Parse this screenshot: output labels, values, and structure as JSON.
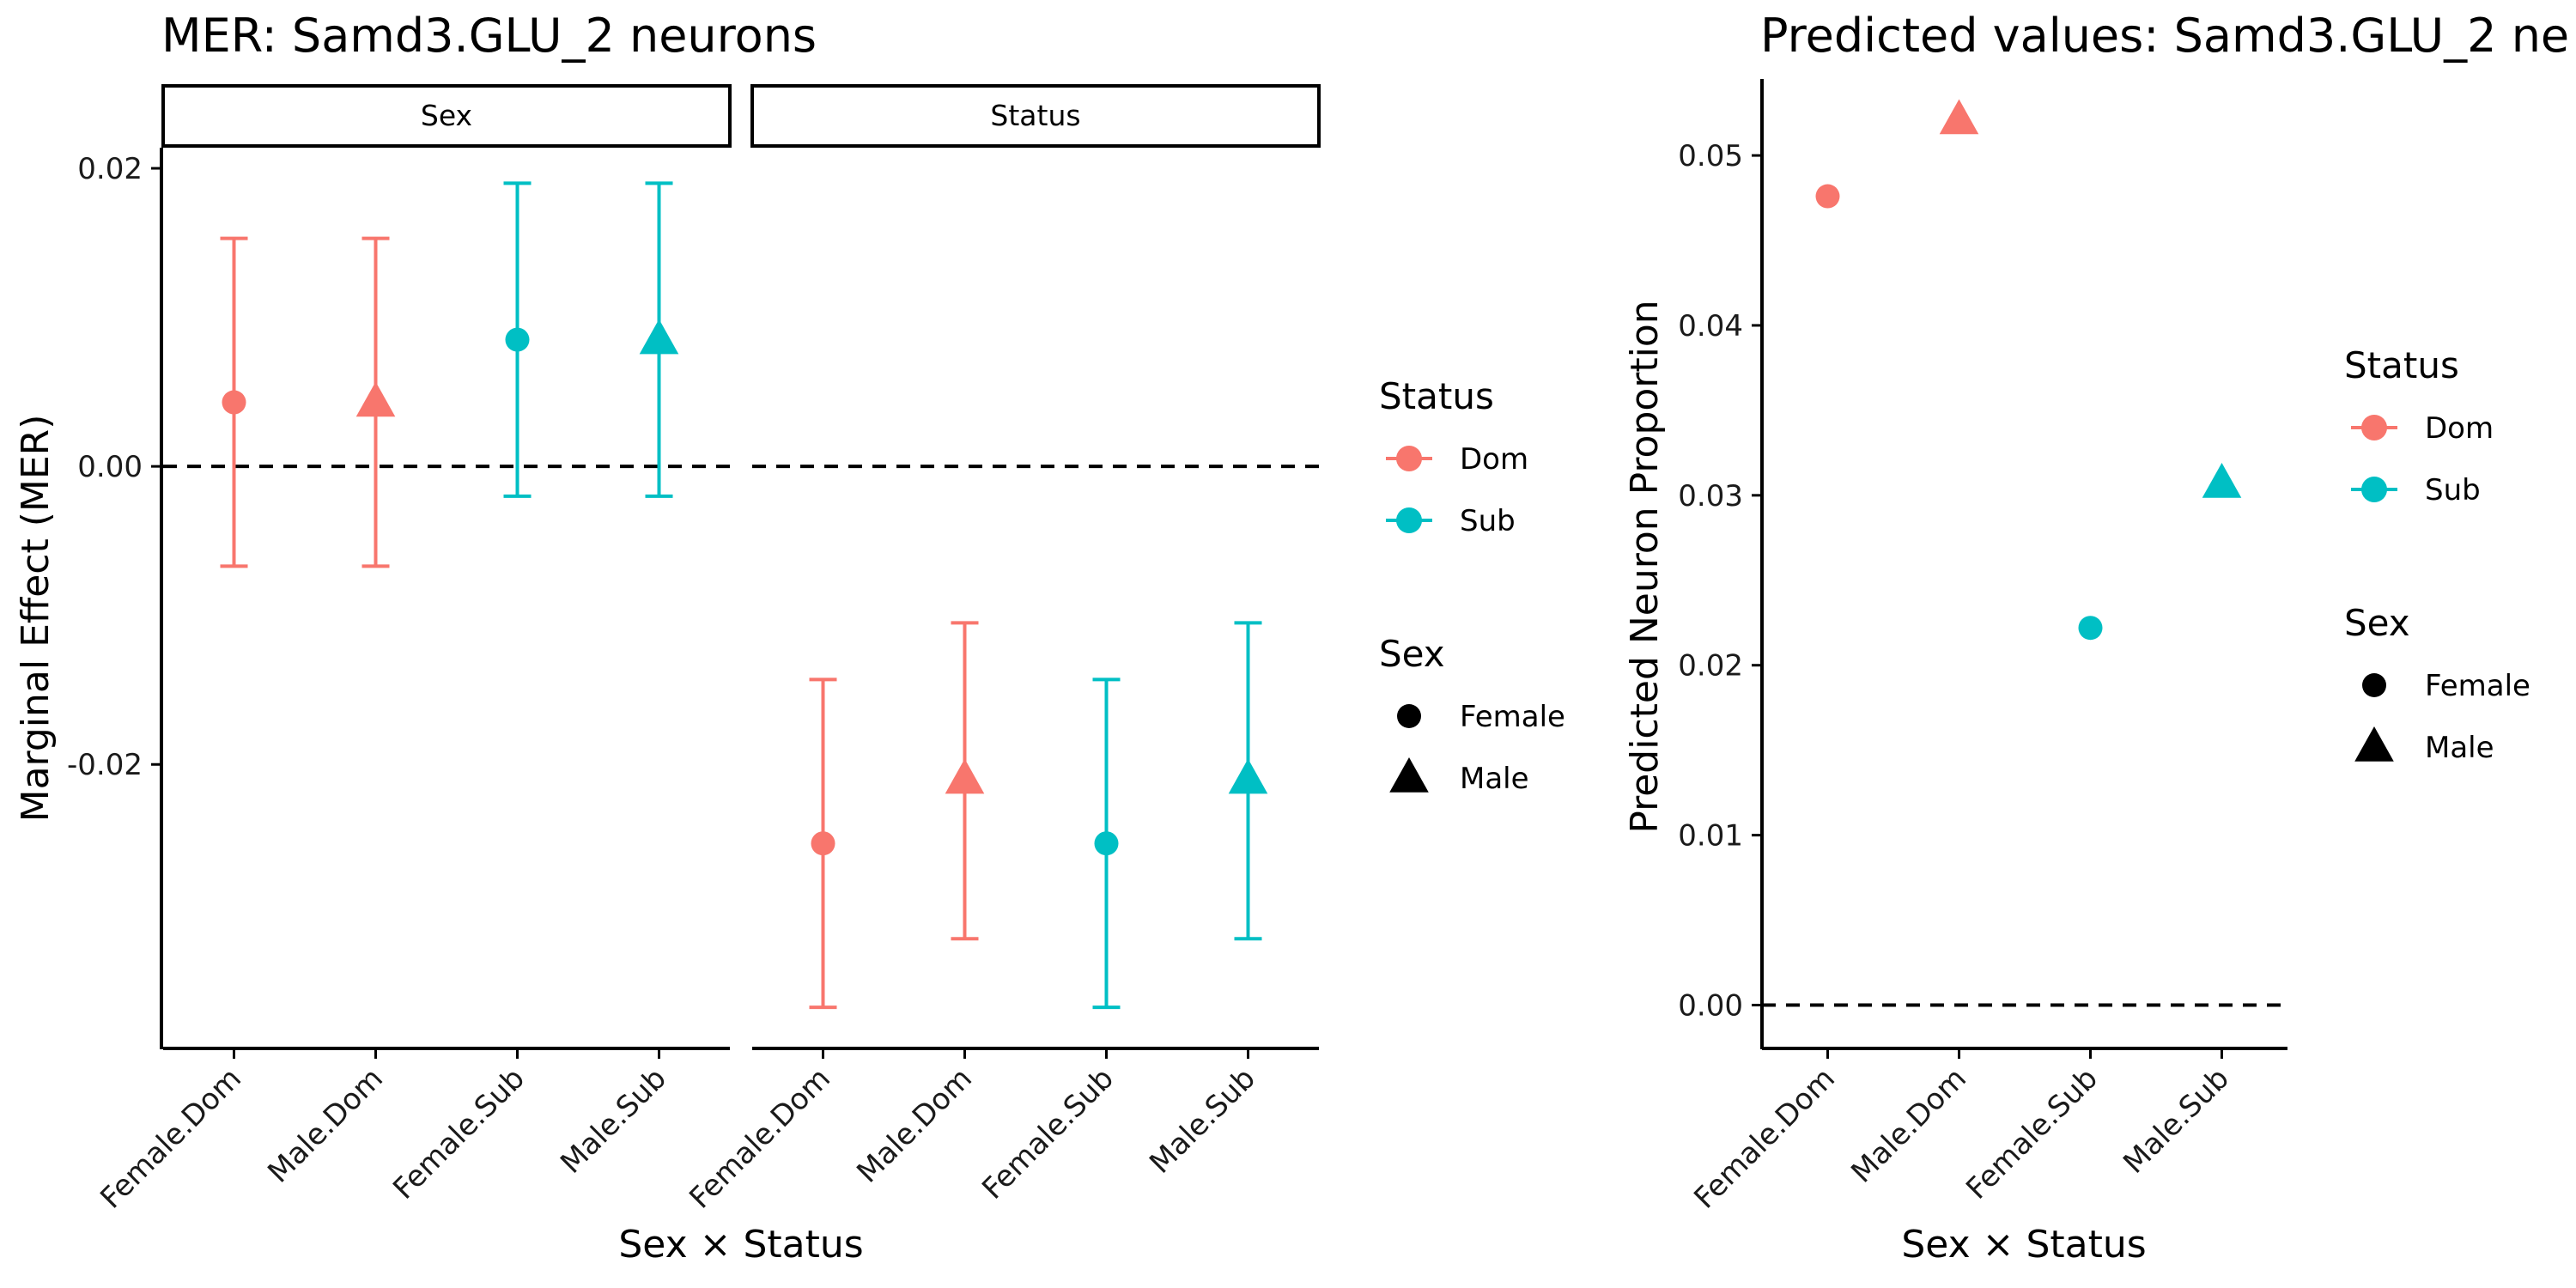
{
  "chart_data": [
    {
      "type": "errorbar",
      "title": "MER: Samd3.GLU_2 neurons",
      "xlabel": "Sex × Status",
      "ylabel": "Marginal Effect (MER)",
      "ylim": [
        -0.039,
        0.0215
      ],
      "yticks": [
        0.02,
        0.0,
        -0.02
      ],
      "ytick_labels": [
        "0.02",
        "0.00",
        "-0.02"
      ],
      "reference_line": 0,
      "categories": [
        "Female.Dom",
        "Male.Dom",
        "Female.Sub",
        "Male.Sub"
      ],
      "facets": [
        {
          "label": "Sex",
          "points": [
            {
              "x": "Female.Dom",
              "sex": "Female",
              "status": "Dom",
              "y": 0.0043,
              "ymin": -0.0067,
              "ymax": 0.0153
            },
            {
              "x": "Male.Dom",
              "sex": "Male",
              "status": "Dom",
              "y": 0.0043,
              "ymin": -0.0067,
              "ymax": 0.0153
            },
            {
              "x": "Female.Sub",
              "sex": "Female",
              "status": "Sub",
              "y": 0.0085,
              "ymin": -0.002,
              "ymax": 0.019
            },
            {
              "x": "Male.Sub",
              "sex": "Male",
              "status": "Sub",
              "y": 0.0085,
              "ymin": -0.002,
              "ymax": 0.019
            }
          ]
        },
        {
          "label": "Status",
          "points": [
            {
              "x": "Female.Dom",
              "sex": "Female",
              "status": "Dom",
              "y": -0.0253,
              "ymin": -0.0363,
              "ymax": -0.0143
            },
            {
              "x": "Male.Dom",
              "sex": "Male",
              "status": "Dom",
              "y": -0.021,
              "ymin": -0.0317,
              "ymax": -0.0105
            },
            {
              "x": "Female.Sub",
              "sex": "Female",
              "status": "Sub",
              "y": -0.0253,
              "ymin": -0.0363,
              "ymax": -0.0143
            },
            {
              "x": "Male.Sub",
              "sex": "Male",
              "status": "Sub",
              "y": -0.021,
              "ymin": -0.0317,
              "ymax": -0.0105
            }
          ]
        }
      ],
      "legend": {
        "placement": "right",
        "status_title": "Status",
        "status": [
          {
            "label": "Dom",
            "color": "#F8766D"
          },
          {
            "label": "Sub",
            "color": "#00BFC4"
          }
        ],
        "sex_title": "Sex",
        "sex": [
          {
            "label": "Female",
            "shape": "circle"
          },
          {
            "label": "Male",
            "shape": "triangle"
          }
        ]
      }
    },
    {
      "type": "scatter",
      "title": "Predicted values: Samd3.GLU_2 ne",
      "xlabel": "Sex × Status",
      "ylabel": "Predicted Neuron Proportion",
      "ylim": [
        -0.0025,
        0.0545
      ],
      "yticks": [
        0.0,
        0.01,
        0.02,
        0.03,
        0.04,
        0.05
      ],
      "ytick_labels": [
        "0.00",
        "0.01",
        "0.02",
        "0.03",
        "0.04",
        "0.05"
      ],
      "reference_line": 0,
      "categories": [
        "Female.Dom",
        "Male.Dom",
        "Female.Sub",
        "Male.Sub"
      ],
      "points": [
        {
          "x": "Female.Dom",
          "sex": "Female",
          "status": "Dom",
          "y": 0.0476
        },
        {
          "x": "Male.Dom",
          "sex": "Male",
          "status": "Dom",
          "y": 0.0521
        },
        {
          "x": "Female.Sub",
          "sex": "Female",
          "status": "Sub",
          "y": 0.0222
        },
        {
          "x": "Male.Sub",
          "sex": "Male",
          "status": "Sub",
          "y": 0.0307
        }
      ],
      "legend": {
        "placement": "right",
        "status_title": "Status",
        "status": [
          {
            "label": "Dom",
            "color": "#F8766D"
          },
          {
            "label": "Sub",
            "color": "#00BFC4"
          }
        ],
        "sex_title": "Sex",
        "sex": [
          {
            "label": "Female",
            "shape": "circle"
          },
          {
            "label": "Male",
            "shape": "triangle"
          }
        ]
      }
    }
  ]
}
